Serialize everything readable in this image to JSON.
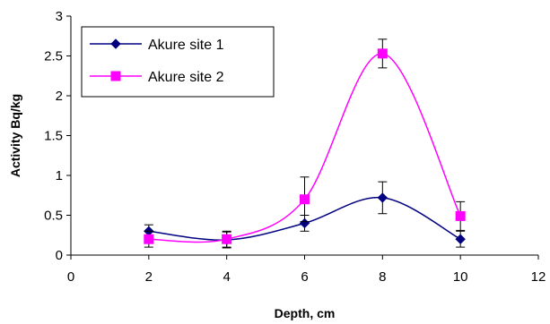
{
  "chart_data": {
    "type": "line",
    "xlabel": "Depth, cm",
    "ylabel": "Activity Bq/kg",
    "xlim": [
      0,
      12
    ],
    "ylim": [
      0,
      3
    ],
    "x_ticks": [
      0,
      2,
      4,
      6,
      8,
      10,
      12
    ],
    "y_ticks": [
      0,
      0.5,
      1,
      1.5,
      2,
      2.5,
      3
    ],
    "x_tick_labels": [
      "0",
      "2",
      "4",
      "6",
      "8",
      "10",
      "12"
    ],
    "y_tick_labels": [
      "0",
      "0.5",
      "1",
      "1.5",
      "2",
      "2.5",
      "3"
    ],
    "grid": false,
    "legend_placement": "top-left",
    "smooth": true,
    "series": [
      {
        "name": "Akure site 1",
        "marker": "diamond",
        "color": "#000080",
        "x": [
          2,
          4,
          6,
          8,
          10
        ],
        "y": [
          0.3,
          0.19,
          0.4,
          0.72,
          0.2
        ],
        "error": [
          0.08,
          0.1,
          0.1,
          0.2,
          0.1
        ]
      },
      {
        "name": "Akure site 2",
        "marker": "square",
        "color": "#FF00FF",
        "x": [
          2,
          4,
          6,
          8,
          10
        ],
        "y": [
          0.2,
          0.2,
          0.7,
          2.53,
          0.49
        ],
        "error": [
          0.1,
          0.1,
          0.28,
          0.18,
          0.18
        ]
      }
    ]
  }
}
